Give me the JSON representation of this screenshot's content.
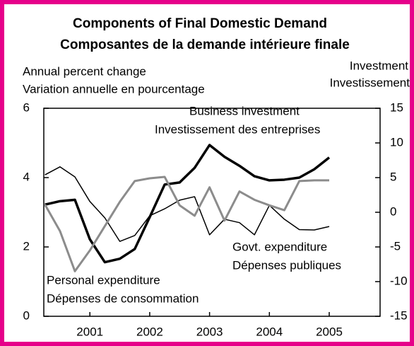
{
  "chart_data": {
    "type": "line",
    "title": [
      "Components of Final Domestic Demand",
      "Composantes de la demande intérieure finale"
    ],
    "y_label": [
      "Annual percent change",
      "Variation annuelle en pourcentage"
    ],
    "y2_label": [
      "Investment",
      "Investissement"
    ],
    "annotations": [
      [
        "Business investment",
        "Investissement des entreprises"
      ],
      [
        "Govt. expenditure",
        "Dépenses publiques"
      ],
      [
        "Personal expenditure",
        "Dépenses de consommation"
      ]
    ],
    "x": [
      2000.75,
      2001.0,
      2001.25,
      2001.5,
      2001.75,
      2002.0,
      2002.25,
      2002.5,
      2002.75,
      2003.0,
      2003.25,
      2003.5,
      2003.75,
      2004.0,
      2004.25,
      2004.5,
      2004.75,
      2005.0,
      2005.25,
      2005.5
    ],
    "xlim": [
      2000.73,
      2006.35
    ],
    "xticks": [
      {
        "value": 2001.5,
        "label": "2001"
      },
      {
        "value": 2002.5,
        "label": "2002"
      },
      {
        "value": 2003.5,
        "label": "2003"
      },
      {
        "value": 2004.5,
        "label": "2004"
      },
      {
        "value": 2005.5,
        "label": "2005"
      }
    ],
    "ylim": [
      0,
      6
    ],
    "yticks": [
      0,
      2,
      4,
      6
    ],
    "y2lim": [
      -15,
      15
    ],
    "y2ticks": [
      -15,
      -10,
      -5,
      0,
      5,
      10,
      15
    ],
    "series": [
      {
        "name": "Personal expenditure",
        "color": "#000000",
        "width": 1.5,
        "values": [
          4.08,
          4.31,
          4.02,
          3.31,
          2.84,
          2.16,
          2.33,
          2.9,
          3.1,
          3.35,
          3.45,
          2.35,
          2.8,
          2.7,
          2.35,
          3.2,
          2.8,
          2.5,
          2.49,
          2.59
        ]
      },
      {
        "name": "Business investment",
        "color": "#000000",
        "width": 3.5,
        "axis": "y2",
        "values": [
          1.1,
          1.6,
          1.8,
          -3.9,
          -7.2,
          -6.7,
          -5.3,
          -0.7,
          4.0,
          4.3,
          6.4,
          9.7,
          8.0,
          6.7,
          5.2,
          4.6,
          4.7,
          5.0,
          6.2,
          7.9
        ]
      },
      {
        "name": "Govt. expenditure",
        "color": "#8c8c8c",
        "width": 3,
        "axis": "y2",
        "values": [
          1.1,
          -2.7,
          -8.5,
          -5.5,
          -2.0,
          1.5,
          4.5,
          4.9,
          5.1,
          1.0,
          -0.5,
          3.6,
          -1.2,
          3.0,
          1.8,
          1.0,
          0.3,
          4.5,
          4.6,
          4.6
        ]
      }
    ]
  }
}
